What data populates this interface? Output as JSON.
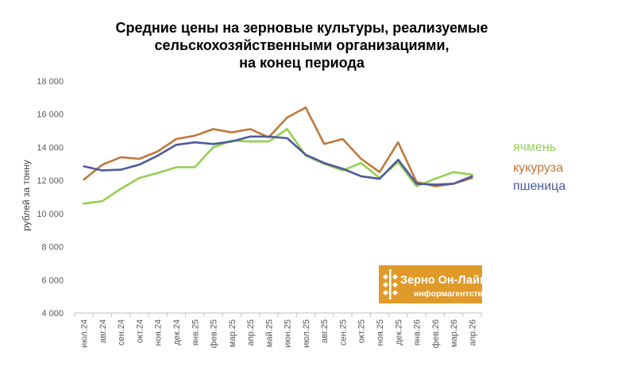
{
  "chart_data": {
    "type": "line",
    "title_lines": [
      "Средние цены на зерновые культуры, реализуемые",
      "сельскохозяйственными организациями,",
      "на конец периода"
    ],
    "ylabel": "рублей за тонну",
    "xlabel": "",
    "ylim": [
      4000,
      18000
    ],
    "yticks": [
      4000,
      6000,
      8000,
      10000,
      12000,
      14000,
      16000,
      18000
    ],
    "ytick_labels": [
      "4 000",
      "6 000",
      "8 000",
      "10 000",
      "12 000",
      "14 000",
      "16 000",
      "18 000"
    ],
    "grid": false,
    "legend_position": "right",
    "categories": [
      "июл.24",
      "авг.24",
      "сен.24",
      "окт.24",
      "ноя.24",
      "дек.24",
      "янв.25",
      "фев.25",
      "мар.25",
      "апр.25",
      "май.25",
      "июн.25",
      "июл.25",
      "авг.25",
      "сен.25",
      "окт.25",
      "ноя.25",
      "дек.25",
      "янв.26",
      "фев.26",
      "мар.26",
      "апр.26"
    ],
    "series": [
      {
        "name": "ячмень",
        "color": "#92d050",
        "values": [
          10600,
          10750,
          11500,
          12150,
          12450,
          12800,
          12800,
          14000,
          14400,
          14350,
          14350,
          15100,
          13500,
          13000,
          12600,
          13050,
          12150,
          13100,
          11650,
          12100,
          12500,
          12350
        ]
      },
      {
        "name": "кукуруза",
        "color": "#c0773a",
        "values": [
          12050,
          12950,
          13400,
          13300,
          13750,
          14500,
          14700,
          15100,
          14900,
          15100,
          14600,
          15800,
          16400,
          14200,
          14500,
          13300,
          12500,
          14300,
          11900,
          11650,
          11800,
          12150
        ]
      },
      {
        "name": "пшеница",
        "color": "#4e5a9c",
        "values": [
          12850,
          12600,
          12650,
          12950,
          13500,
          14150,
          14300,
          14200,
          14350,
          14650,
          14650,
          14550,
          13550,
          13050,
          12700,
          12250,
          12100,
          13250,
          11800,
          11750,
          11800,
          12250
        ]
      }
    ]
  },
  "logo": {
    "name_text": "Зерно Он-Лайн",
    "subtitle_text": "информагентство",
    "background_color": "#e09a2a",
    "text_color": "#ffffff"
  }
}
